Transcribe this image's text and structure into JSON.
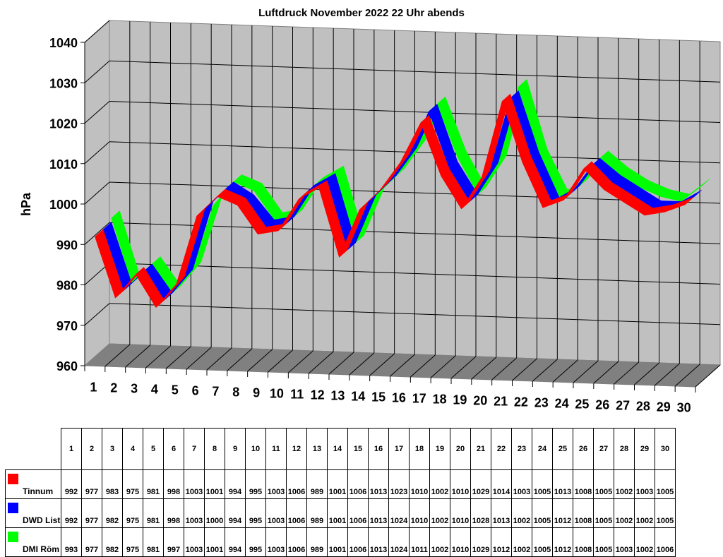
{
  "chart_data": {
    "type": "line",
    "style": "3d-ribbon",
    "title": "Luftdruck November 2022 22 Uhr abends",
    "xlabel": "",
    "ylabel": "hPa",
    "ylim": [
      960,
      1040
    ],
    "yticks": [
      960,
      970,
      980,
      990,
      1000,
      1010,
      1020,
      1030,
      1040
    ],
    "grid": true,
    "legend_position": "data-table-below",
    "categories": [
      "1",
      "2",
      "3",
      "4",
      "5",
      "6",
      "7",
      "8",
      "9",
      "10",
      "11",
      "12",
      "13",
      "14",
      "15",
      "16",
      "17",
      "18",
      "19",
      "20",
      "21",
      "22",
      "23",
      "24",
      "25",
      "26",
      "27",
      "28",
      "29",
      "30"
    ],
    "series": [
      {
        "name": "Tinnum",
        "color": "#ff0000",
        "values": [
          992,
          977,
          983,
          975,
          981,
          998,
          1003,
          1001,
          994,
          995,
          1003,
          1006,
          989,
          1001,
          1006,
          1013,
          1023,
          1010,
          1002,
          1010,
          1029,
          1014,
          1003,
          1005,
          1013,
          1008,
          1005,
          1002,
          1003,
          1005
        ]
      },
      {
        "name": "DWD List",
        "color": "#0000ff",
        "values": [
          992,
          977,
          982,
          975,
          981,
          998,
          1003,
          1000,
          994,
          995,
          1003,
          1006,
          989,
          1001,
          1006,
          1013,
          1024,
          1010,
          1002,
          1010,
          1028,
          1013,
          1002,
          1005,
          1012,
          1008,
          1005,
          1002,
          1002,
          1005
        ]
      },
      {
        "name": "DMI Röm",
        "color": "#00ff00",
        "values": [
          993,
          977,
          982,
          975,
          981,
          997,
          1003,
          1001,
          994,
          995,
          1003,
          1006,
          989,
          1001,
          1006,
          1013,
          1024,
          1011,
          1002,
          1010,
          1029,
          1012,
          1002,
          1005,
          1012,
          1008,
          1005,
          1003,
          1002,
          1006
        ]
      }
    ]
  },
  "colors": {
    "wall": "#c0c0c0",
    "floor": "#808080",
    "grid": "#000000"
  }
}
